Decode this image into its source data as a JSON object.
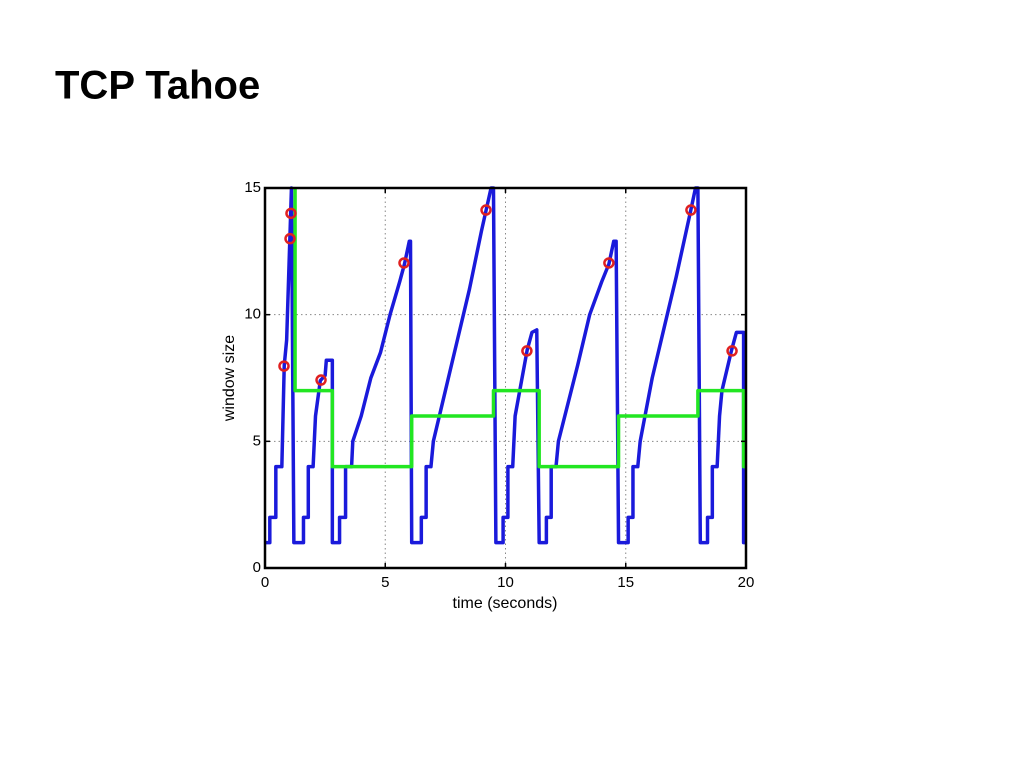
{
  "chart_data": {
    "type": "line",
    "title": "TCP Tahoe",
    "xlabel": "time (seconds)",
    "ylabel": "window size",
    "xlim": [
      0,
      20
    ],
    "ylim": [
      0,
      15
    ],
    "xticks": [
      0,
      5,
      10,
      15,
      20
    ],
    "yticks": [
      0,
      5,
      10,
      15
    ],
    "grid": true,
    "series": [
      {
        "color": "#1a1adb",
        "x": [
          0,
          0.2,
          0.2,
          0.45,
          0.45,
          0.7,
          0.75,
          0.8,
          0.9,
          1.0,
          1.05,
          1.1,
          1.2,
          1.6,
          1.6,
          1.8,
          1.8,
          2.0,
          2.1,
          2.3,
          2.5,
          2.55,
          2.8,
          2.8,
          3.1,
          3.1,
          3.35,
          3.35,
          3.6,
          3.65,
          4.0,
          4.4,
          4.8,
          5.2,
          5.6,
          5.8,
          6.0,
          6.05,
          6.1,
          6.5,
          6.5,
          6.7,
          6.7,
          6.9,
          7.0,
          7.5,
          8.0,
          8.5,
          9.0,
          9.4,
          9.5,
          9.6,
          9.9,
          9.9,
          10.1,
          10.1,
          10.3,
          10.4,
          10.9,
          11.1,
          11.3,
          11.4,
          11.7,
          11.7,
          11.9,
          11.9,
          12.1,
          12.2,
          12.6,
          13.0,
          13.5,
          14.0,
          14.3,
          14.5,
          14.6,
          14.7,
          15.1,
          15.1,
          15.3,
          15.3,
          15.5,
          15.6,
          16.1,
          16.6,
          17.1,
          17.7,
          17.9,
          18.0,
          18.1,
          18.4,
          18.4,
          18.6,
          18.6,
          18.8,
          18.9,
          19.0,
          19.4,
          19.6,
          19.9,
          19.9,
          20
        ],
        "values": [
          1,
          1,
          2,
          2,
          4,
          4,
          6,
          8,
          9,
          12,
          13.5,
          15,
          1,
          1,
          2,
          2,
          4,
          4,
          6,
          7.4,
          7.6,
          8.2,
          8.2,
          1,
          1,
          2,
          2,
          4,
          4,
          5,
          6,
          7.5,
          8.5,
          10,
          11.3,
          12,
          12.9,
          12.9,
          1,
          1,
          2,
          2,
          4,
          4,
          5,
          7,
          9,
          11,
          13.3,
          15,
          15,
          1,
          1,
          2,
          2,
          4,
          4,
          6,
          8.6,
          9.3,
          9.4,
          1,
          1,
          2,
          2,
          4,
          4,
          5,
          6.5,
          8,
          10,
          11.3,
          12,
          12.9,
          12.9,
          1,
          1,
          2,
          2,
          4,
          4,
          5,
          7.5,
          9.5,
          11.5,
          14.1,
          15,
          15,
          1,
          1,
          2,
          2,
          4,
          4,
          6,
          7,
          8.6,
          9.3,
          9.3,
          1,
          1
        ]
      },
      {
        "color": "#22e622",
        "x": [
          1.25,
          1.25,
          2.8,
          2.8,
          6.1,
          6.1,
          9.5,
          9.5,
          11.4,
          11.4,
          14.7,
          14.7,
          18.0,
          18.0,
          19.9,
          19.9,
          20
        ],
        "values": [
          15,
          7,
          7,
          4,
          4,
          6,
          6,
          7,
          7,
          4,
          4,
          6,
          6,
          7,
          7,
          4,
          4
        ]
      },
      {
        "color": "#e02020",
        "marker": "o",
        "line": false,
        "x": [
          0.79,
          1.04,
          1.08,
          2.33,
          5.78,
          9.19,
          10.89,
          14.3,
          17.71,
          19.42
        ],
        "values": [
          7.97,
          13.0,
          14.0,
          7.42,
          12.04,
          14.13,
          8.57,
          12.04,
          14.13,
          8.57
        ]
      }
    ]
  }
}
